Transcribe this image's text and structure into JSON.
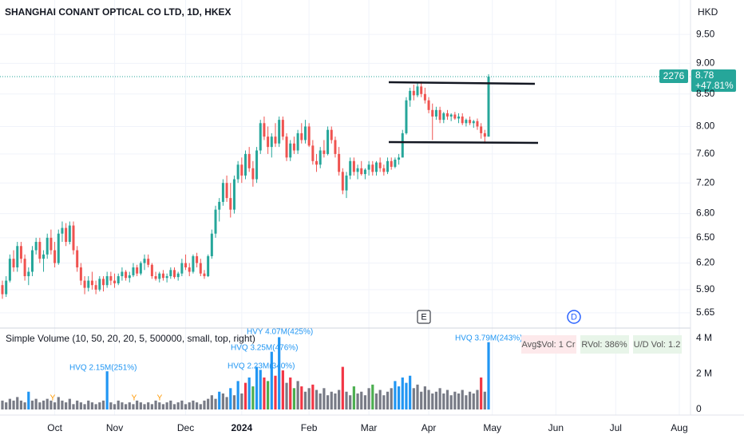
{
  "chart_data": {
    "type": "candlestick",
    "title": "SHANGHAI CONANT OPTICAL CO LTD, 1D, HKEX",
    "currency": "HKD",
    "log_scale": true,
    "grid": true,
    "up_color": "#26a69a",
    "down_color": "#ef5350",
    "ylim": [
      5.5,
      10.13
    ],
    "yticks": [
      {
        "value": 9.5,
        "label": "9.50"
      },
      {
        "value": 9,
        "label": "9.00"
      },
      {
        "value": 8.5,
        "label": "8.50"
      },
      {
        "value": 8,
        "label": "8.00"
      },
      {
        "value": 7.6,
        "label": "7.60"
      },
      {
        "value": 7.2,
        "label": "7.20"
      },
      {
        "value": 6.8,
        "label": "6.80"
      },
      {
        "value": 6.5,
        "label": "6.50"
      },
      {
        "value": 6.2,
        "label": "6.20"
      },
      {
        "value": 5.9,
        "label": "5.90"
      },
      {
        "value": 5.65,
        "label": "5.65"
      }
    ],
    "xlim": [
      -0.64,
      184
    ],
    "xticks": [
      {
        "value": 14,
        "label": "Oct"
      },
      {
        "value": 30,
        "label": "Nov"
      },
      {
        "value": 49,
        "label": "Dec"
      },
      {
        "value": 64,
        "label": "2024"
      },
      {
        "value": 82,
        "label": "Feb"
      },
      {
        "value": 98,
        "label": "Mar"
      },
      {
        "value": 114,
        "label": "Apr"
      },
      {
        "value": 131,
        "label": "May"
      },
      {
        "value": 148,
        "label": "Jun"
      },
      {
        "value": 164,
        "label": "Jul"
      },
      {
        "value": 181,
        "label": "Aug"
      }
    ],
    "last_price": 8.78,
    "change_label": "+47.81%",
    "countdown": "2276",
    "events": [
      "E",
      "D"
    ],
    "candles": [
      [
        5.95,
        6.0,
        5.8,
        5.85
      ],
      [
        5.85,
        6.05,
        5.82,
        6.0
      ],
      [
        6.0,
        6.3,
        5.98,
        6.25
      ],
      [
        6.25,
        6.35,
        6.1,
        6.15
      ],
      [
        6.15,
        6.45,
        6.1,
        6.4
      ],
      [
        6.4,
        6.45,
        6.2,
        6.25
      ],
      [
        6.25,
        6.3,
        6.0,
        6.05
      ],
      [
        6.05,
        6.15,
        5.95,
        6.1
      ],
      [
        6.1,
        6.4,
        6.05,
        6.35
      ],
      [
        6.35,
        6.5,
        6.3,
        6.45
      ],
      [
        6.45,
        6.5,
        6.2,
        6.25
      ],
      [
        6.25,
        6.35,
        6.1,
        6.3
      ],
      [
        6.3,
        6.55,
        6.25,
        6.5
      ],
      [
        6.5,
        6.6,
        6.3,
        6.35
      ],
      [
        6.35,
        6.45,
        6.15,
        6.2
      ],
      [
        6.2,
        6.6,
        6.18,
        6.55
      ],
      [
        6.55,
        6.7,
        6.45,
        6.62
      ],
      [
        6.62,
        6.68,
        6.4,
        6.45
      ],
      [
        6.45,
        6.7,
        6.42,
        6.65
      ],
      [
        6.65,
        6.7,
        6.3,
        6.35
      ],
      [
        6.35,
        6.4,
        6.1,
        6.15
      ],
      [
        6.15,
        6.2,
        5.95,
        6.0
      ],
      [
        6.0,
        6.05,
        5.85,
        5.92
      ],
      [
        5.92,
        6.05,
        5.88,
        6.0
      ],
      [
        6.0,
        6.1,
        5.9,
        5.95
      ],
      [
        5.95,
        6.0,
        5.85,
        5.9
      ],
      [
        5.9,
        6.05,
        5.88,
        6.02
      ],
      [
        6.02,
        6.05,
        5.88,
        5.95
      ],
      [
        5.95,
        6.1,
        5.92,
        6.05
      ],
      [
        6.05,
        6.1,
        5.95,
        6.0
      ],
      [
        6.0,
        6.08,
        5.92,
        5.97
      ],
      [
        5.97,
        6.08,
        5.95,
        6.05
      ],
      [
        6.05,
        6.15,
        6.0,
        6.1
      ],
      [
        6.1,
        6.12,
        6.0,
        6.03
      ],
      [
        6.03,
        6.1,
        5.98,
        6.06
      ],
      [
        6.06,
        6.2,
        6.04,
        6.15
      ],
      [
        6.15,
        6.18,
        6.05,
        6.08
      ],
      [
        6.08,
        6.22,
        6.06,
        6.2
      ],
      [
        6.2,
        6.3,
        6.12,
        6.25
      ],
      [
        6.25,
        6.3,
        6.15,
        6.18
      ],
      [
        6.18,
        6.2,
        6.02,
        6.05
      ],
      [
        6.05,
        6.1,
        6.0,
        6.02
      ],
      [
        6.02,
        6.1,
        5.98,
        6.08
      ],
      [
        6.08,
        6.12,
        6.0,
        6.03
      ],
      [
        6.03,
        6.08,
        5.98,
        6.05
      ],
      [
        6.05,
        6.15,
        6.02,
        6.12
      ],
      [
        6.12,
        6.15,
        6.02,
        6.04
      ],
      [
        6.04,
        6.1,
        6.0,
        6.08
      ],
      [
        6.08,
        6.25,
        6.05,
        6.2
      ],
      [
        6.2,
        6.3,
        6.12,
        6.15
      ],
      [
        6.15,
        6.2,
        6.05,
        6.1
      ],
      [
        6.1,
        6.3,
        6.08,
        6.28
      ],
      [
        6.28,
        6.32,
        6.15,
        6.2
      ],
      [
        6.2,
        6.25,
        6.05,
        6.08
      ],
      [
        6.08,
        6.12,
        6.02,
        6.05
      ],
      [
        6.05,
        6.3,
        6.04,
        6.28
      ],
      [
        6.28,
        6.6,
        6.25,
        6.55
      ],
      [
        6.55,
        6.9,
        6.5,
        6.85
      ],
      [
        6.85,
        7.0,
        6.7,
        6.95
      ],
      [
        6.95,
        7.25,
        6.9,
        7.2
      ],
      [
        7.2,
        7.3,
        6.95,
        7.0
      ],
      [
        7.0,
        7.2,
        6.75,
        6.85
      ],
      [
        6.85,
        7.3,
        6.8,
        7.25
      ],
      [
        7.25,
        7.5,
        7.2,
        7.45
      ],
      [
        7.45,
        7.55,
        7.2,
        7.3
      ],
      [
        7.3,
        7.65,
        7.25,
        7.6
      ],
      [
        7.6,
        7.7,
        7.35,
        7.4
      ],
      [
        7.4,
        7.5,
        7.15,
        7.25
      ],
      [
        7.25,
        7.7,
        7.2,
        7.65
      ],
      [
        7.65,
        8.1,
        7.6,
        8.05
      ],
      [
        8.05,
        8.15,
        7.8,
        7.85
      ],
      [
        7.85,
        8.0,
        7.6,
        7.7
      ],
      [
        7.7,
        7.9,
        7.55,
        7.85
      ],
      [
        7.85,
        8.05,
        7.7,
        7.75
      ],
      [
        7.75,
        8.15,
        7.7,
        8.1
      ],
      [
        8.1,
        8.15,
        7.8,
        7.85
      ],
      [
        7.85,
        7.9,
        7.5,
        7.55
      ],
      [
        7.55,
        7.8,
        7.5,
        7.75
      ],
      [
        7.75,
        7.85,
        7.6,
        7.65
      ],
      [
        7.65,
        7.95,
        7.6,
        7.9
      ],
      [
        7.9,
        8.05,
        7.75,
        7.8
      ],
      [
        7.8,
        8.1,
        7.75,
        8.0
      ],
      [
        8.0,
        8.05,
        7.7,
        7.72
      ],
      [
        7.72,
        7.8,
        7.45,
        7.5
      ],
      [
        7.5,
        7.6,
        7.35,
        7.45
      ],
      [
        7.45,
        7.7,
        7.4,
        7.65
      ],
      [
        7.65,
        7.8,
        7.55,
        7.6
      ],
      [
        7.6,
        8.0,
        7.58,
        7.95
      ],
      [
        7.95,
        8.0,
        7.75,
        7.8
      ],
      [
        7.8,
        7.85,
        7.55,
        7.6
      ],
      [
        7.6,
        7.7,
        7.3,
        7.35
      ],
      [
        7.35,
        7.4,
        7.05,
        7.1
      ],
      [
        7.1,
        7.35,
        7.0,
        7.3
      ],
      [
        7.3,
        7.55,
        7.25,
        7.5
      ],
      [
        7.5,
        7.55,
        7.3,
        7.35
      ],
      [
        7.35,
        7.45,
        7.25,
        7.4
      ],
      [
        7.4,
        7.5,
        7.3,
        7.32
      ],
      [
        7.32,
        7.4,
        7.25,
        7.38
      ],
      [
        7.38,
        7.5,
        7.3,
        7.45
      ],
      [
        7.45,
        7.5,
        7.3,
        7.35
      ],
      [
        7.35,
        7.5,
        7.3,
        7.48
      ],
      [
        7.48,
        7.55,
        7.35,
        7.4
      ],
      [
        7.4,
        7.45,
        7.3,
        7.35
      ],
      [
        7.35,
        7.55,
        7.32,
        7.5
      ],
      [
        7.5,
        7.55,
        7.38,
        7.42
      ],
      [
        7.42,
        7.55,
        7.4,
        7.52
      ],
      [
        7.52,
        7.6,
        7.45,
        7.55
      ],
      [
        7.55,
        7.95,
        7.55,
        7.9
      ],
      [
        7.9,
        8.45,
        7.88,
        8.4
      ],
      [
        8.4,
        8.6,
        8.3,
        8.55
      ],
      [
        8.55,
        8.65,
        8.4,
        8.48
      ],
      [
        8.48,
        8.68,
        8.45,
        8.62
      ],
      [
        8.62,
        8.7,
        8.45,
        8.5
      ],
      [
        8.5,
        8.6,
        8.35,
        8.4
      ],
      [
        8.4,
        8.45,
        8.2,
        8.25
      ],
      [
        8.25,
        8.35,
        7.8,
        8.15
      ],
      [
        8.15,
        8.3,
        8.1,
        8.25
      ],
      [
        8.25,
        8.3,
        8.05,
        8.1
      ],
      [
        8.1,
        8.22,
        8.05,
        8.2
      ],
      [
        8.2,
        8.25,
        8.1,
        8.15
      ],
      [
        8.15,
        8.2,
        8.08,
        8.18
      ],
      [
        8.18,
        8.22,
        8.1,
        8.12
      ],
      [
        8.12,
        8.2,
        8.05,
        8.15
      ],
      [
        8.15,
        8.2,
        8.02,
        8.05
      ],
      [
        8.05,
        8.12,
        8.0,
        8.1
      ],
      [
        8.1,
        8.15,
        8.02,
        8.05
      ],
      [
        8.05,
        8.1,
        7.98,
        8.08
      ],
      [
        8.08,
        8.12,
        7.95,
        8.0
      ],
      [
        8.0,
        8.05,
        7.82,
        7.9
      ],
      [
        7.9,
        7.95,
        7.75,
        7.85
      ],
      [
        7.85,
        8.82,
        7.85,
        8.78
      ]
    ],
    "volume": {
      "title": "Simple Volume (10, 50, 20, 20, 5, 500000, small, top, right)",
      "ylim": [
        0,
        4.3
      ],
      "yticks": [
        {
          "value": 4,
          "label": "4 M"
        },
        {
          "value": 2,
          "label": "2 M"
        },
        0
      ],
      "palette": {
        "n": "#787b86",
        "b": "#2196f3",
        "r": "#f23645",
        "g": "#4caf50"
      },
      "values": [
        0.5,
        0.4,
        0.6,
        0.5,
        0.7,
        0.5,
        0.4,
        1.0,
        0.5,
        0.6,
        0.4,
        0.5,
        0.6,
        0.5,
        0.4,
        0.7,
        0.5,
        0.4,
        0.6,
        0.3,
        0.5,
        0.4,
        0.3,
        0.5,
        0.4,
        0.3,
        0.4,
        0.5,
        2.15,
        0.4,
        0.3,
        0.5,
        0.4,
        0.3,
        0.4,
        0.3,
        0.5,
        0.4,
        0.3,
        0.4,
        0.3,
        0.5,
        0.4,
        0.3,
        0.4,
        0.5,
        0.3,
        0.4,
        0.5,
        0.3,
        0.4,
        0.5,
        0.4,
        0.3,
        0.5,
        0.6,
        0.8,
        0.6,
        1.0,
        0.9,
        0.7,
        1.2,
        0.8,
        1.6,
        0.9,
        1.5,
        1.8,
        1.3,
        2.4,
        2.23,
        1.8,
        1.6,
        3.25,
        1.9,
        4.07,
        2.2,
        1.5,
        1.8,
        1.2,
        1.6,
        1.3,
        1.0,
        1.2,
        1.4,
        1.1,
        0.9,
        1.2,
        0.8,
        1.0,
        0.9,
        1.1,
        2.4,
        1.0,
        0.8,
        1.3,
        0.9,
        1.0,
        0.8,
        1.2,
        1.4,
        0.9,
        1.1,
        0.8,
        1.0,
        1.2,
        1.6,
        1.3,
        1.8,
        1.5,
        1.9,
        1.2,
        1.4,
        1.0,
        1.3,
        1.1,
        0.9,
        1.0,
        1.2,
        0.9,
        1.1,
        0.8,
        1.0,
        0.9,
        1.1,
        0.8,
        1.0,
        0.9,
        1.1,
        1.8,
        1.0,
        3.79
      ],
      "colors": [
        "n",
        "n",
        "n",
        "n",
        "n",
        "n",
        "n",
        "b",
        "n",
        "n",
        "n",
        "n",
        "n",
        "n",
        "n",
        "n",
        "n",
        "n",
        "n",
        "n",
        "n",
        "n",
        "n",
        "n",
        "n",
        "n",
        "n",
        "n",
        "b",
        "n",
        "n",
        "n",
        "n",
        "n",
        "n",
        "n",
        "n",
        "n",
        "n",
        "n",
        "n",
        "n",
        "n",
        "n",
        "n",
        "n",
        "n",
        "n",
        "n",
        "n",
        "n",
        "n",
        "n",
        "n",
        "n",
        "n",
        "n",
        "n",
        "b",
        "n",
        "n",
        "b",
        "n",
        "b",
        "n",
        "r",
        "b",
        "g",
        "b",
        "b",
        "r",
        "g",
        "b",
        "r",
        "b",
        "r",
        "n",
        "r",
        "g",
        "n",
        "r",
        "n",
        "n",
        "r",
        "n",
        "n",
        "n",
        "n",
        "n",
        "n",
        "n",
        "r",
        "n",
        "n",
        "g",
        "n",
        "n",
        "n",
        "n",
        "g",
        "n",
        "n",
        "n",
        "n",
        "n",
        "b",
        "b",
        "b",
        "b",
        "b",
        "n",
        "n",
        "n",
        "n",
        "n",
        "n",
        "n",
        "n",
        "n",
        "n",
        "n",
        "n",
        "n",
        "n",
        "n",
        "n",
        "n",
        "n",
        "r",
        "n",
        "b"
      ],
      "annotations": [
        "HVQ 2.15M(251%)",
        "HVY 4.07M(425%)",
        "HVQ 3.25M(476%)",
        "HVQ 2.23M(340%)",
        "HVQ 3.79M(243%)"
      ],
      "markers": [
        "Y",
        "Y",
        "Y"
      ],
      "stats": [
        "Avg$Vol: 1 Cr",
        "RVol: 386%",
        "U/D Vol: 1.2"
      ]
    }
  }
}
